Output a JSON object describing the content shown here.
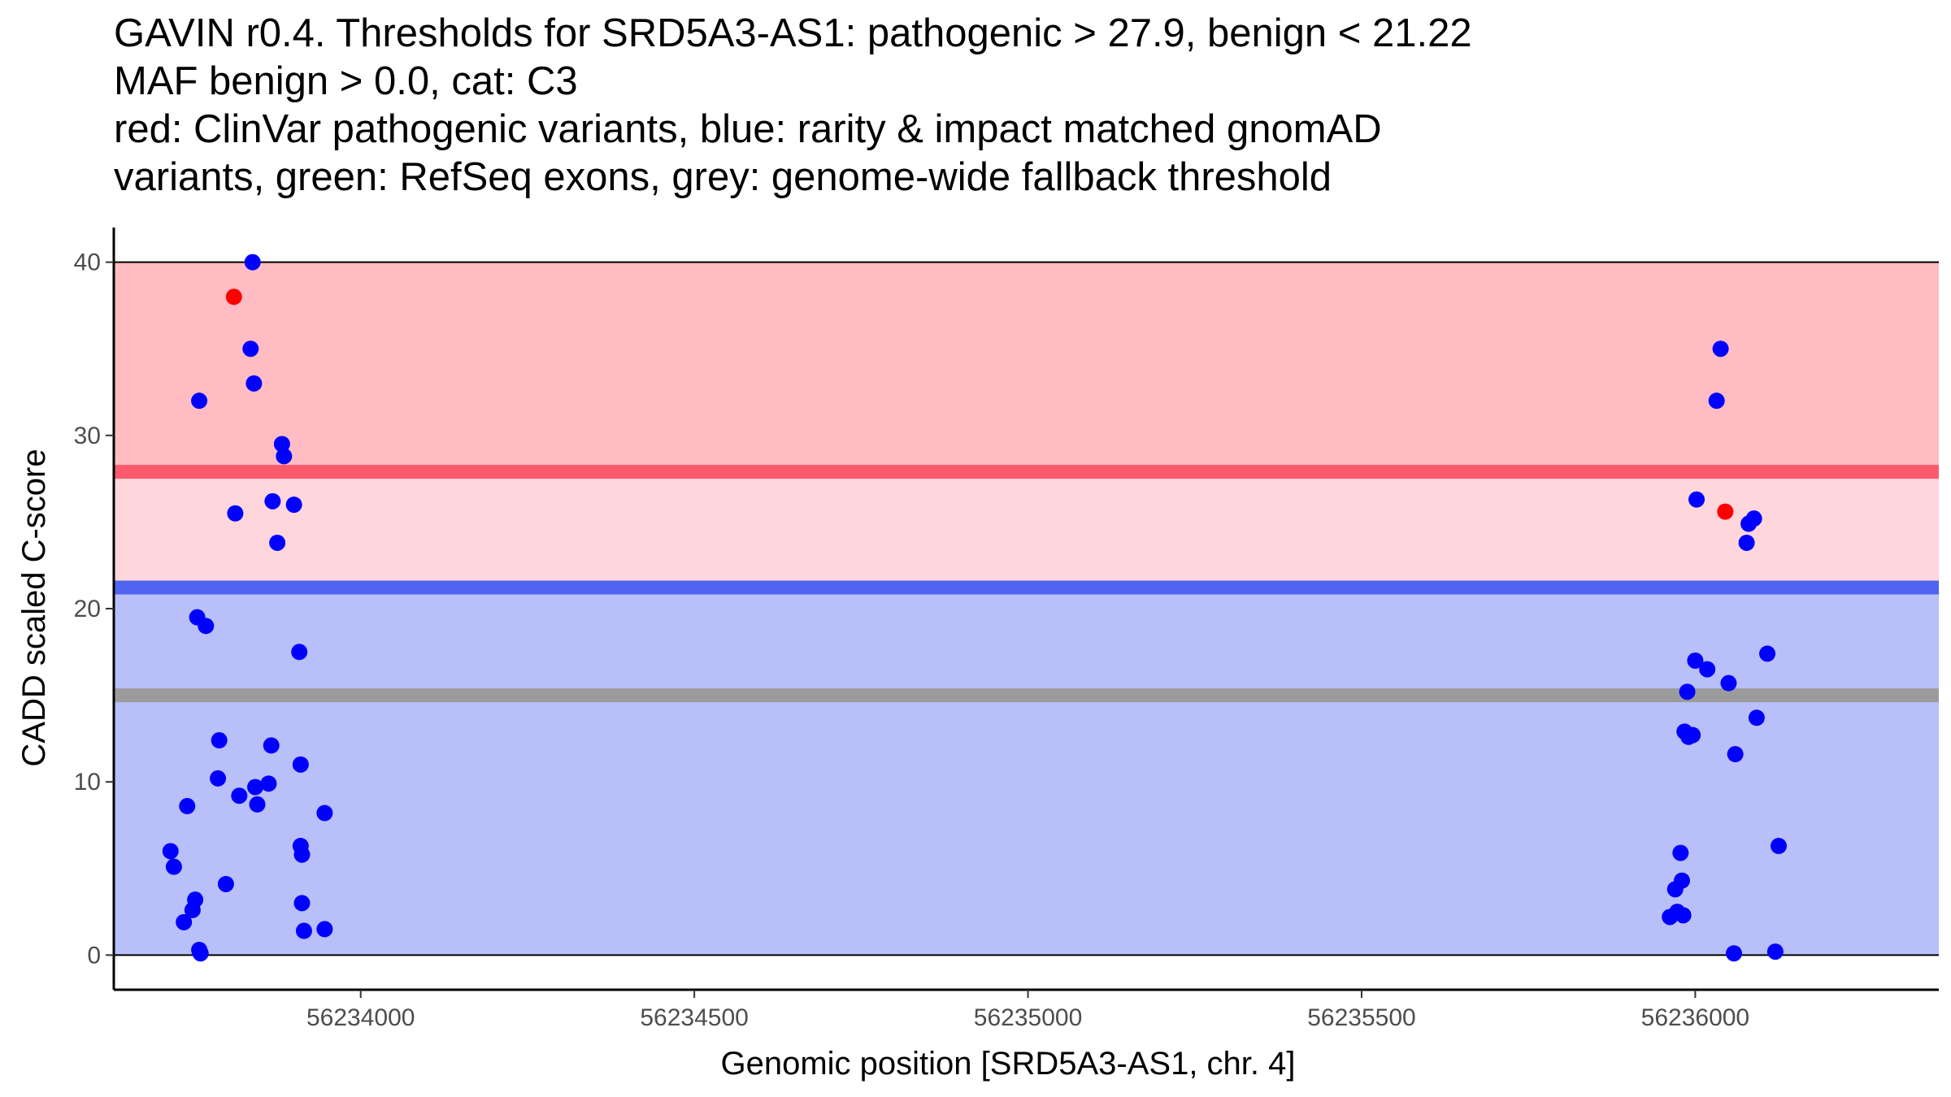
{
  "chart_data": {
    "type": "scatter",
    "title_lines": [
      "GAVIN r0.4. Thresholds for SRD5A3-AS1: pathogenic > 27.9, benign < 21.22",
      "MAF benign > 0.0, cat: C3",
      "red: ClinVar pathogenic variants, blue: rarity & impact matched gnomAD",
      "variants, green: RefSeq exons, grey: genome-wide fallback threshold"
    ],
    "xlabel": "Genomic position [SRD5A3-AS1, chr. 4]",
    "ylabel": "CADD scaled C-score",
    "xlim": [
      56233630,
      56236365
    ],
    "ylim": [
      -2,
      42
    ],
    "x_ticks": [
      56234000,
      56234500,
      56235000,
      56235500,
      56236000
    ],
    "y_ticks": [
      0,
      10,
      20,
      30,
      40
    ],
    "grid": false,
    "bands": [
      {
        "name": "pathogenic region",
        "y0": 27.9,
        "y1": 40,
        "color": "#ffbcc2"
      },
      {
        "name": "uncertain region",
        "y0": 21.22,
        "y1": 27.9,
        "color": "#ffd6dc"
      },
      {
        "name": "benign region",
        "y0": 0,
        "y1": 21.22,
        "color": "#b9bff8"
      }
    ],
    "bounds": [
      {
        "y": 0
      },
      {
        "y": 40
      }
    ],
    "thresholds": [
      {
        "name": "pathogenic threshold",
        "y": 27.9,
        "color": "#fa5a6c"
      },
      {
        "name": "benign threshold",
        "y": 21.22,
        "color": "#5064f0"
      },
      {
        "name": "genome-wide fallback threshold",
        "y": 15.0,
        "color": "#9b9b9b"
      }
    ],
    "series": [
      {
        "name": "ClinVar pathogenic variants",
        "color": "#ff0000",
        "points": [
          [
            56233810,
            38.0
          ],
          [
            56236045,
            25.6
          ]
        ]
      },
      {
        "name": "rarity & impact matched gnomAD variants",
        "color": "#0000ff",
        "points": [
          [
            56233838,
            40.0
          ],
          [
            56233835,
            35.0
          ],
          [
            56233840,
            33.0
          ],
          [
            56233758,
            32.0
          ],
          [
            56233882,
            29.5
          ],
          [
            56233885,
            28.8
          ],
          [
            56233812,
            25.5
          ],
          [
            56233868,
            26.2
          ],
          [
            56233900,
            26.0
          ],
          [
            56233875,
            23.8
          ],
          [
            56233755,
            19.5
          ],
          [
            56233768,
            19.0
          ],
          [
            56233908,
            17.5
          ],
          [
            56233788,
            12.4
          ],
          [
            56233866,
            12.1
          ],
          [
            56233910,
            11.0
          ],
          [
            56233786,
            10.2
          ],
          [
            56233862,
            9.9
          ],
          [
            56233842,
            9.7
          ],
          [
            56233818,
            9.2
          ],
          [
            56233845,
            8.7
          ],
          [
            56233740,
            8.6
          ],
          [
            56233946,
            8.2
          ],
          [
            56233910,
            6.3
          ],
          [
            56233912,
            5.8
          ],
          [
            56233715,
            6.0
          ],
          [
            56233720,
            5.1
          ],
          [
            56233798,
            4.1
          ],
          [
            56233752,
            3.2
          ],
          [
            56233748,
            2.6
          ],
          [
            56233735,
            1.9
          ],
          [
            56233912,
            3.0
          ],
          [
            56233915,
            1.4
          ],
          [
            56233946,
            1.5
          ],
          [
            56233758,
            0.3
          ],
          [
            56233760,
            0.1
          ],
          [
            56236038,
            35.0
          ],
          [
            56236032,
            32.0
          ],
          [
            56236002,
            26.3
          ],
          [
            56236080,
            24.9
          ],
          [
            56236088,
            25.2
          ],
          [
            56236077,
            23.8
          ],
          [
            56236000,
            17.0
          ],
          [
            56236018,
            16.5
          ],
          [
            56236108,
            17.4
          ],
          [
            56236050,
            15.7
          ],
          [
            56235988,
            15.2
          ],
          [
            56235984,
            12.9
          ],
          [
            56235990,
            12.6
          ],
          [
            56235996,
            12.7
          ],
          [
            56236092,
            13.7
          ],
          [
            56236060,
            11.6
          ],
          [
            56236125,
            6.3
          ],
          [
            56235978,
            5.9
          ],
          [
            56235980,
            4.3
          ],
          [
            56235970,
            3.8
          ],
          [
            56235973,
            2.5
          ],
          [
            56235962,
            2.2
          ],
          [
            56235982,
            2.3
          ],
          [
            56236058,
            0.1
          ],
          [
            56236120,
            0.2
          ]
        ]
      }
    ]
  }
}
